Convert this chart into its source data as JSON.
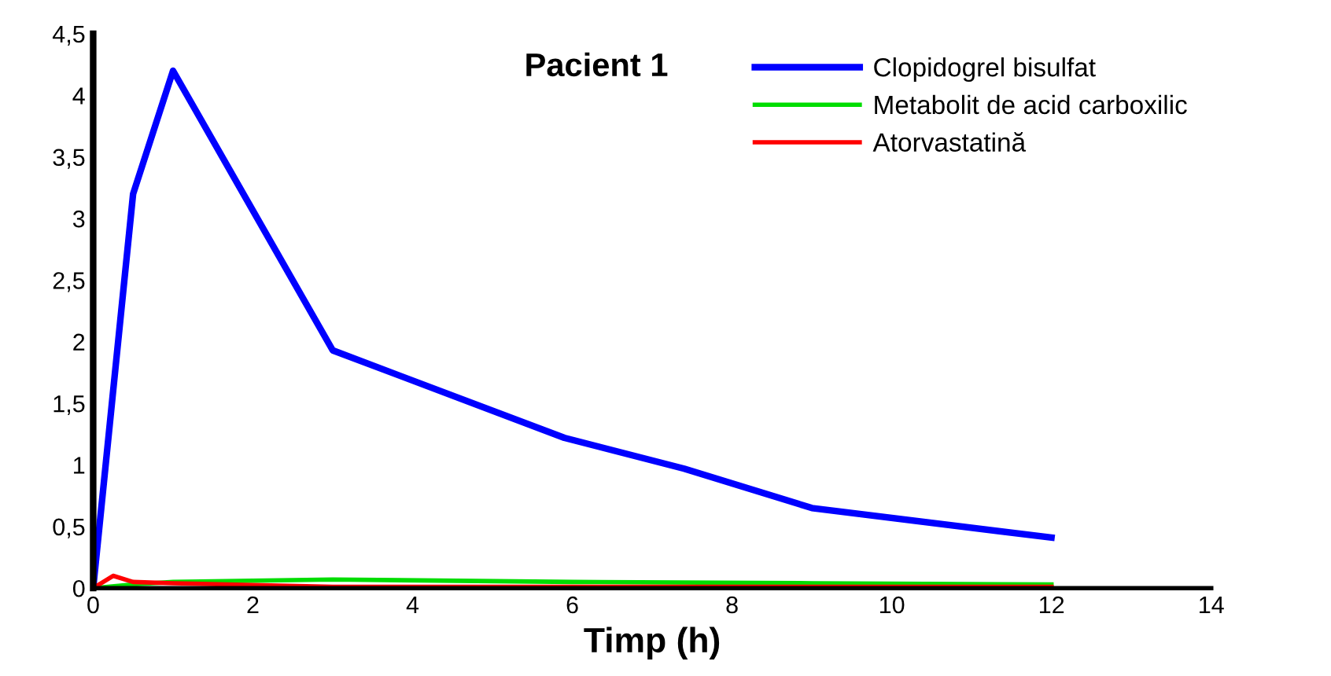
{
  "chart_data": {
    "type": "line",
    "title": "Pacient 1",
    "xlabel": "Timp (h)",
    "xlim": [
      0,
      14
    ],
    "ylim": [
      0,
      4.5
    ],
    "xticks": [
      0,
      2,
      4,
      6,
      8,
      10,
      12,
      14
    ],
    "yticks": [
      {
        "value": 0,
        "label": "0"
      },
      {
        "value": 0.5,
        "label": "0,5"
      },
      {
        "value": 1,
        "label": "1"
      },
      {
        "value": 1.5,
        "label": "1,5"
      },
      {
        "value": 2,
        "label": "2"
      },
      {
        "value": 2.5,
        "label": "2,5"
      },
      {
        "value": 3,
        "label": "3"
      },
      {
        "value": 3.5,
        "label": "3,5"
      },
      {
        "value": 4,
        "label": "4"
      },
      {
        "value": 4.5,
        "label": "4,5"
      }
    ],
    "grid": false,
    "legend": "top right",
    "marker": "none",
    "line_style": "solid",
    "series": [
      {
        "name": "Clopidogrel bisulfat",
        "color": "#0000ff",
        "x": [
          0,
          0.5,
          1,
          3,
          5.9,
          7.4,
          9,
          12
        ],
        "values": [
          0,
          3.2,
          4.2,
          1.93,
          1.22,
          0.97,
          0.65,
          0.41
        ]
      },
      {
        "name": "Metabolit de acid carboxilic",
        "color": "#00dd00",
        "x": [
          0,
          0.5,
          1,
          3,
          6,
          9,
          12
        ],
        "values": [
          0,
          0.03,
          0.05,
          0.07,
          0.05,
          0.04,
          0.03
        ]
      },
      {
        "name": "Atorvastatină",
        "color": "#ff0000",
        "x": [
          0,
          0.25,
          0.5,
          1,
          3,
          6,
          9,
          12
        ],
        "values": [
          0,
          0.1,
          0.05,
          0.04,
          0.01,
          0.01,
          0.01,
          0.01
        ]
      }
    ]
  }
}
